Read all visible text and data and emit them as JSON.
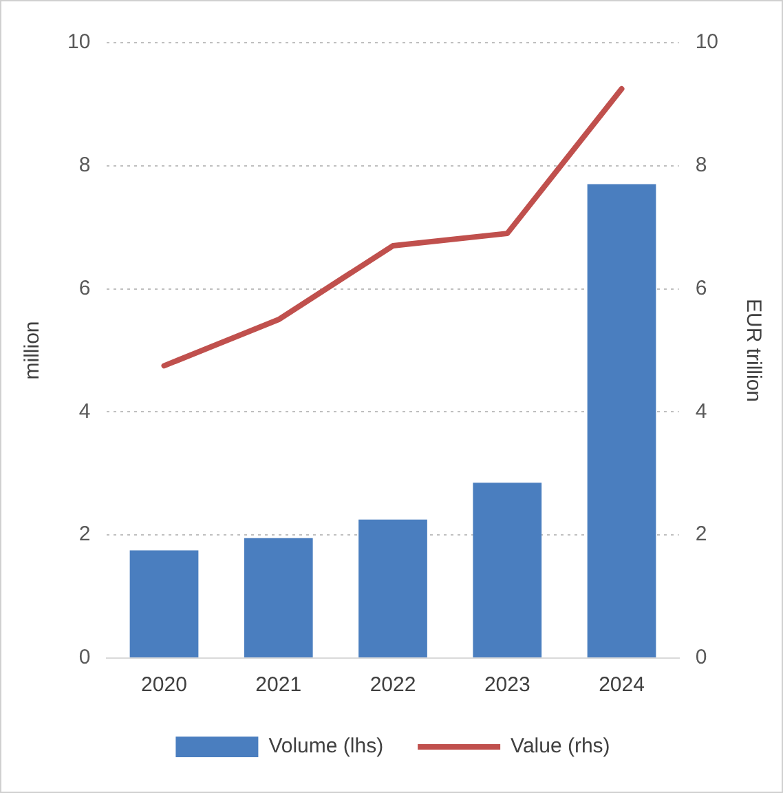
{
  "chart_data": {
    "type": "bar",
    "categories": [
      "2020",
      "2021",
      "2022",
      "2023",
      "2024"
    ],
    "series": [
      {
        "name": "Volume (lhs)",
        "color": "#4a7ebf",
        "values": [
          1.75,
          1.95,
          2.25,
          2.85,
          7.7
        ]
      },
      {
        "name": "Value (rhs)",
        "type": "line",
        "axis": "y2",
        "color": "#c0504d",
        "values": [
          4.75,
          5.5,
          6.7,
          6.9,
          9.25
        ]
      }
    ],
    "ylabel": "million",
    "y2label": "EUR trillion",
    "ylim": [
      0,
      10
    ],
    "yticks": [
      0,
      2,
      4,
      6,
      8,
      10
    ],
    "y2lim": [
      0,
      10
    ],
    "y2ticks": [
      0,
      2,
      4,
      6,
      8,
      10
    ],
    "grid": "y",
    "legend": "bottom",
    "marker": "none",
    "line_style": "solid"
  }
}
